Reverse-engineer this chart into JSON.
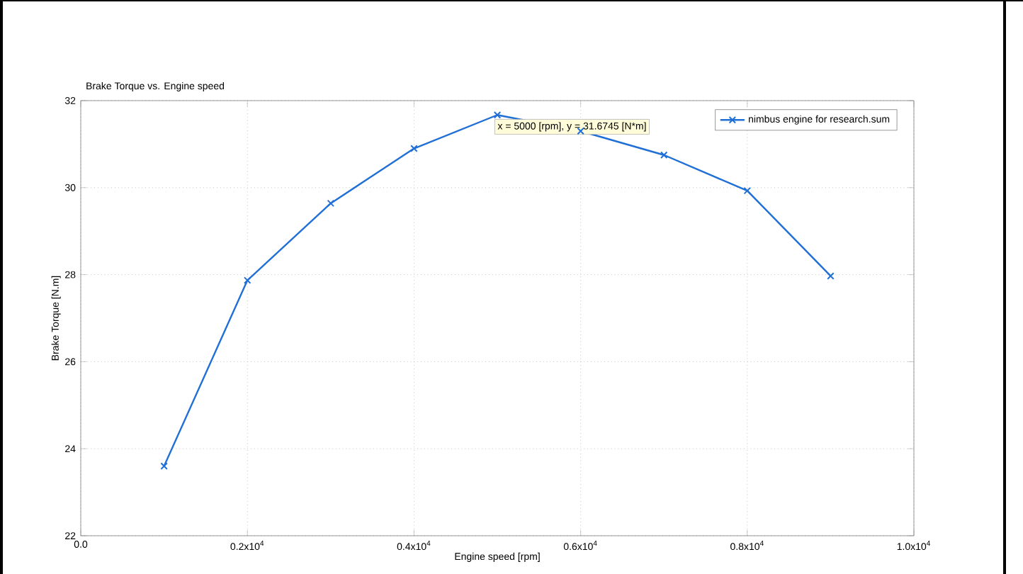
{
  "chart_data": {
    "type": "line",
    "title": "Brake Torque vs. Engine speed",
    "xlabel": "Engine speed  [rpm]",
    "ylabel": "Brake Torque  [N.m]",
    "x": [
      1000,
      2000,
      3000,
      4000,
      5000,
      6000,
      7000,
      8000,
      9000
    ],
    "series": [
      {
        "name": "nimbus engine for research.sum",
        "color": "#1f6fd6",
        "values": [
          23.6,
          27.87,
          29.64,
          30.9,
          31.67,
          31.3,
          30.75,
          29.93,
          27.97
        ]
      }
    ],
    "xlim": [
      0,
      10000
    ],
    "ylim": [
      22,
      32
    ],
    "xticks": [
      {
        "value": 0,
        "label": "0.0"
      },
      {
        "value": 2000,
        "label": "0.2x10$^{4}$"
      },
      {
        "value": 4000,
        "label": "0.4x10$^{4}$"
      },
      {
        "value": 6000,
        "label": "0.6x10$^{4}$"
      },
      {
        "value": 8000,
        "label": "0.8x10$^{4}$"
      },
      {
        "value": 10000,
        "label": "1.0x10$^{4}$"
      }
    ],
    "yticks": [
      22,
      24,
      26,
      28,
      30,
      32
    ],
    "annotations": [
      {
        "text": "x = 5000 [rpm], y = 31.6745 [N*m]",
        "x": 5000,
        "y": 31.6745
      }
    ],
    "grid": true,
    "legend": "top right",
    "marker": "cross",
    "line_style": "solid"
  }
}
